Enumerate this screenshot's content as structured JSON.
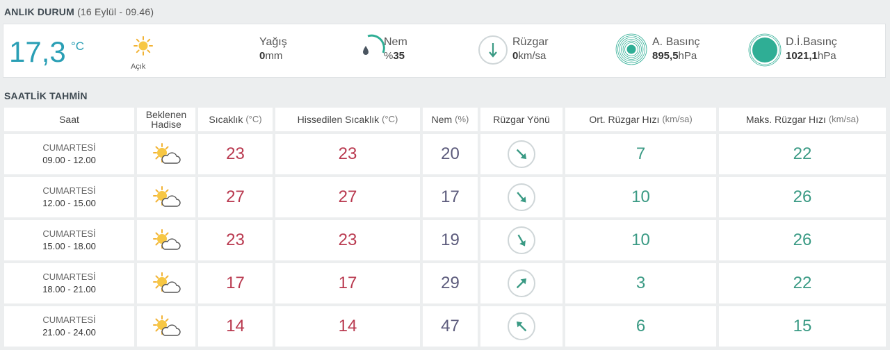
{
  "current": {
    "heading": "ANLIK DURUM",
    "datetime": "(16 Eylül - 09.46)",
    "temperature": "17,3",
    "temperature_unit": "°C",
    "condition": "Açık",
    "precip_label": "Yağış",
    "precip_value": "0",
    "precip_unit": "mm",
    "humidity_label": "Nem",
    "humidity_prefix": "%",
    "humidity_value": "35",
    "wind_label": "Rüzgar",
    "wind_value": "0",
    "wind_unit": "km/sa",
    "pressure_label": "A. Basınç",
    "pressure_value": "895,5",
    "pressure_unit": "hPa",
    "sea_pressure_label": "D.İ.Basınç",
    "sea_pressure_value": "1021,1",
    "sea_pressure_unit": "hPa"
  },
  "hourly": {
    "heading": "SAATLİK TAHMİN",
    "headers": {
      "time": "Saat",
      "event_1": "Beklenen",
      "event_2": "Hadise",
      "temp": "Sıcaklık",
      "temp_unit": "(°C)",
      "feels": "Hissedilen Sıcaklık",
      "feels_unit": "(°C)",
      "humidity": "Nem",
      "humidity_unit": "(%)",
      "wind_dir": "Rüzgar Yönü",
      "avg_wind": "Ort. Rüzgar Hızı",
      "avg_wind_unit": "(km/sa)",
      "max_wind": "Maks. Rüzgar Hızı",
      "max_wind_unit": "(km/sa)"
    },
    "rows": [
      {
        "day": "CUMARTESİ",
        "time": "09.00 - 12.00",
        "temp": "23",
        "feels": "23",
        "humidity": "20",
        "wind_deg": 135,
        "avg_wind": "7",
        "max_wind": "22"
      },
      {
        "day": "CUMARTESİ",
        "time": "12.00 - 15.00",
        "temp": "27",
        "feels": "27",
        "humidity": "17",
        "wind_deg": 140,
        "avg_wind": "10",
        "max_wind": "26"
      },
      {
        "day": "CUMARTESİ",
        "time": "15.00 - 18.00",
        "temp": "23",
        "feels": "23",
        "humidity": "19",
        "wind_deg": 150,
        "avg_wind": "10",
        "max_wind": "26"
      },
      {
        "day": "CUMARTESİ",
        "time": "18.00 - 21.00",
        "temp": "17",
        "feels": "17",
        "humidity": "29",
        "wind_deg": 45,
        "avg_wind": "3",
        "max_wind": "22"
      },
      {
        "day": "CUMARTESİ",
        "time": "21.00 - 24.00",
        "temp": "14",
        "feels": "14",
        "humidity": "47",
        "wind_deg": 315,
        "avg_wind": "6",
        "max_wind": "15"
      }
    ]
  },
  "colors": {
    "accent": "#2a9fb5",
    "temp": "#b9394f",
    "humidity": "#5c5b7c",
    "wind": "#3a9a84"
  }
}
